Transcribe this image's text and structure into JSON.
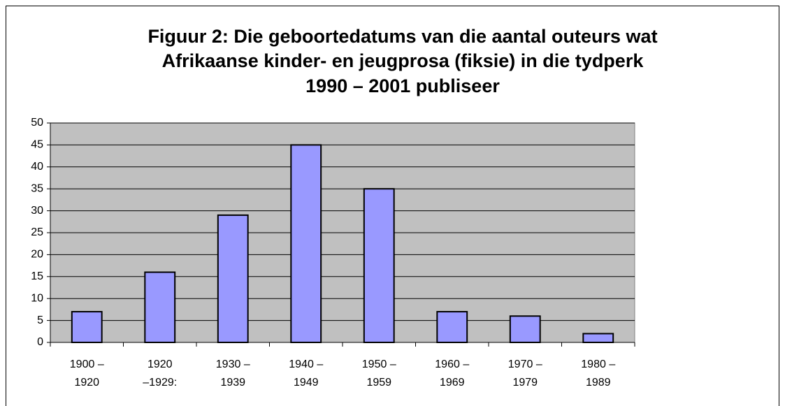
{
  "chart_data": {
    "type": "bar",
    "title": [
      "Figuur 2: Die geboortedatums van die aantal outeurs wat",
      "Afrikaanse kinder- en jeugprosa (fiksie) in die tydperk",
      "1990 – 2001 publiseer"
    ],
    "categories": [
      "1900 –\n1920",
      "1920\n–1929:",
      "1930 –\n1939",
      "1940 –\n1949",
      "1950 –\n1959",
      "1960 –\n1969",
      "1970 –\n1979",
      "1980 –\n1989"
    ],
    "values": [
      7,
      16,
      29,
      45,
      35,
      7,
      6,
      2
    ],
    "color": "#9999ff",
    "ylim": [
      0,
      50
    ],
    "yticks": [
      0,
      5,
      10,
      15,
      20,
      25,
      30,
      35,
      40,
      45,
      50
    ],
    "grid": true
  }
}
